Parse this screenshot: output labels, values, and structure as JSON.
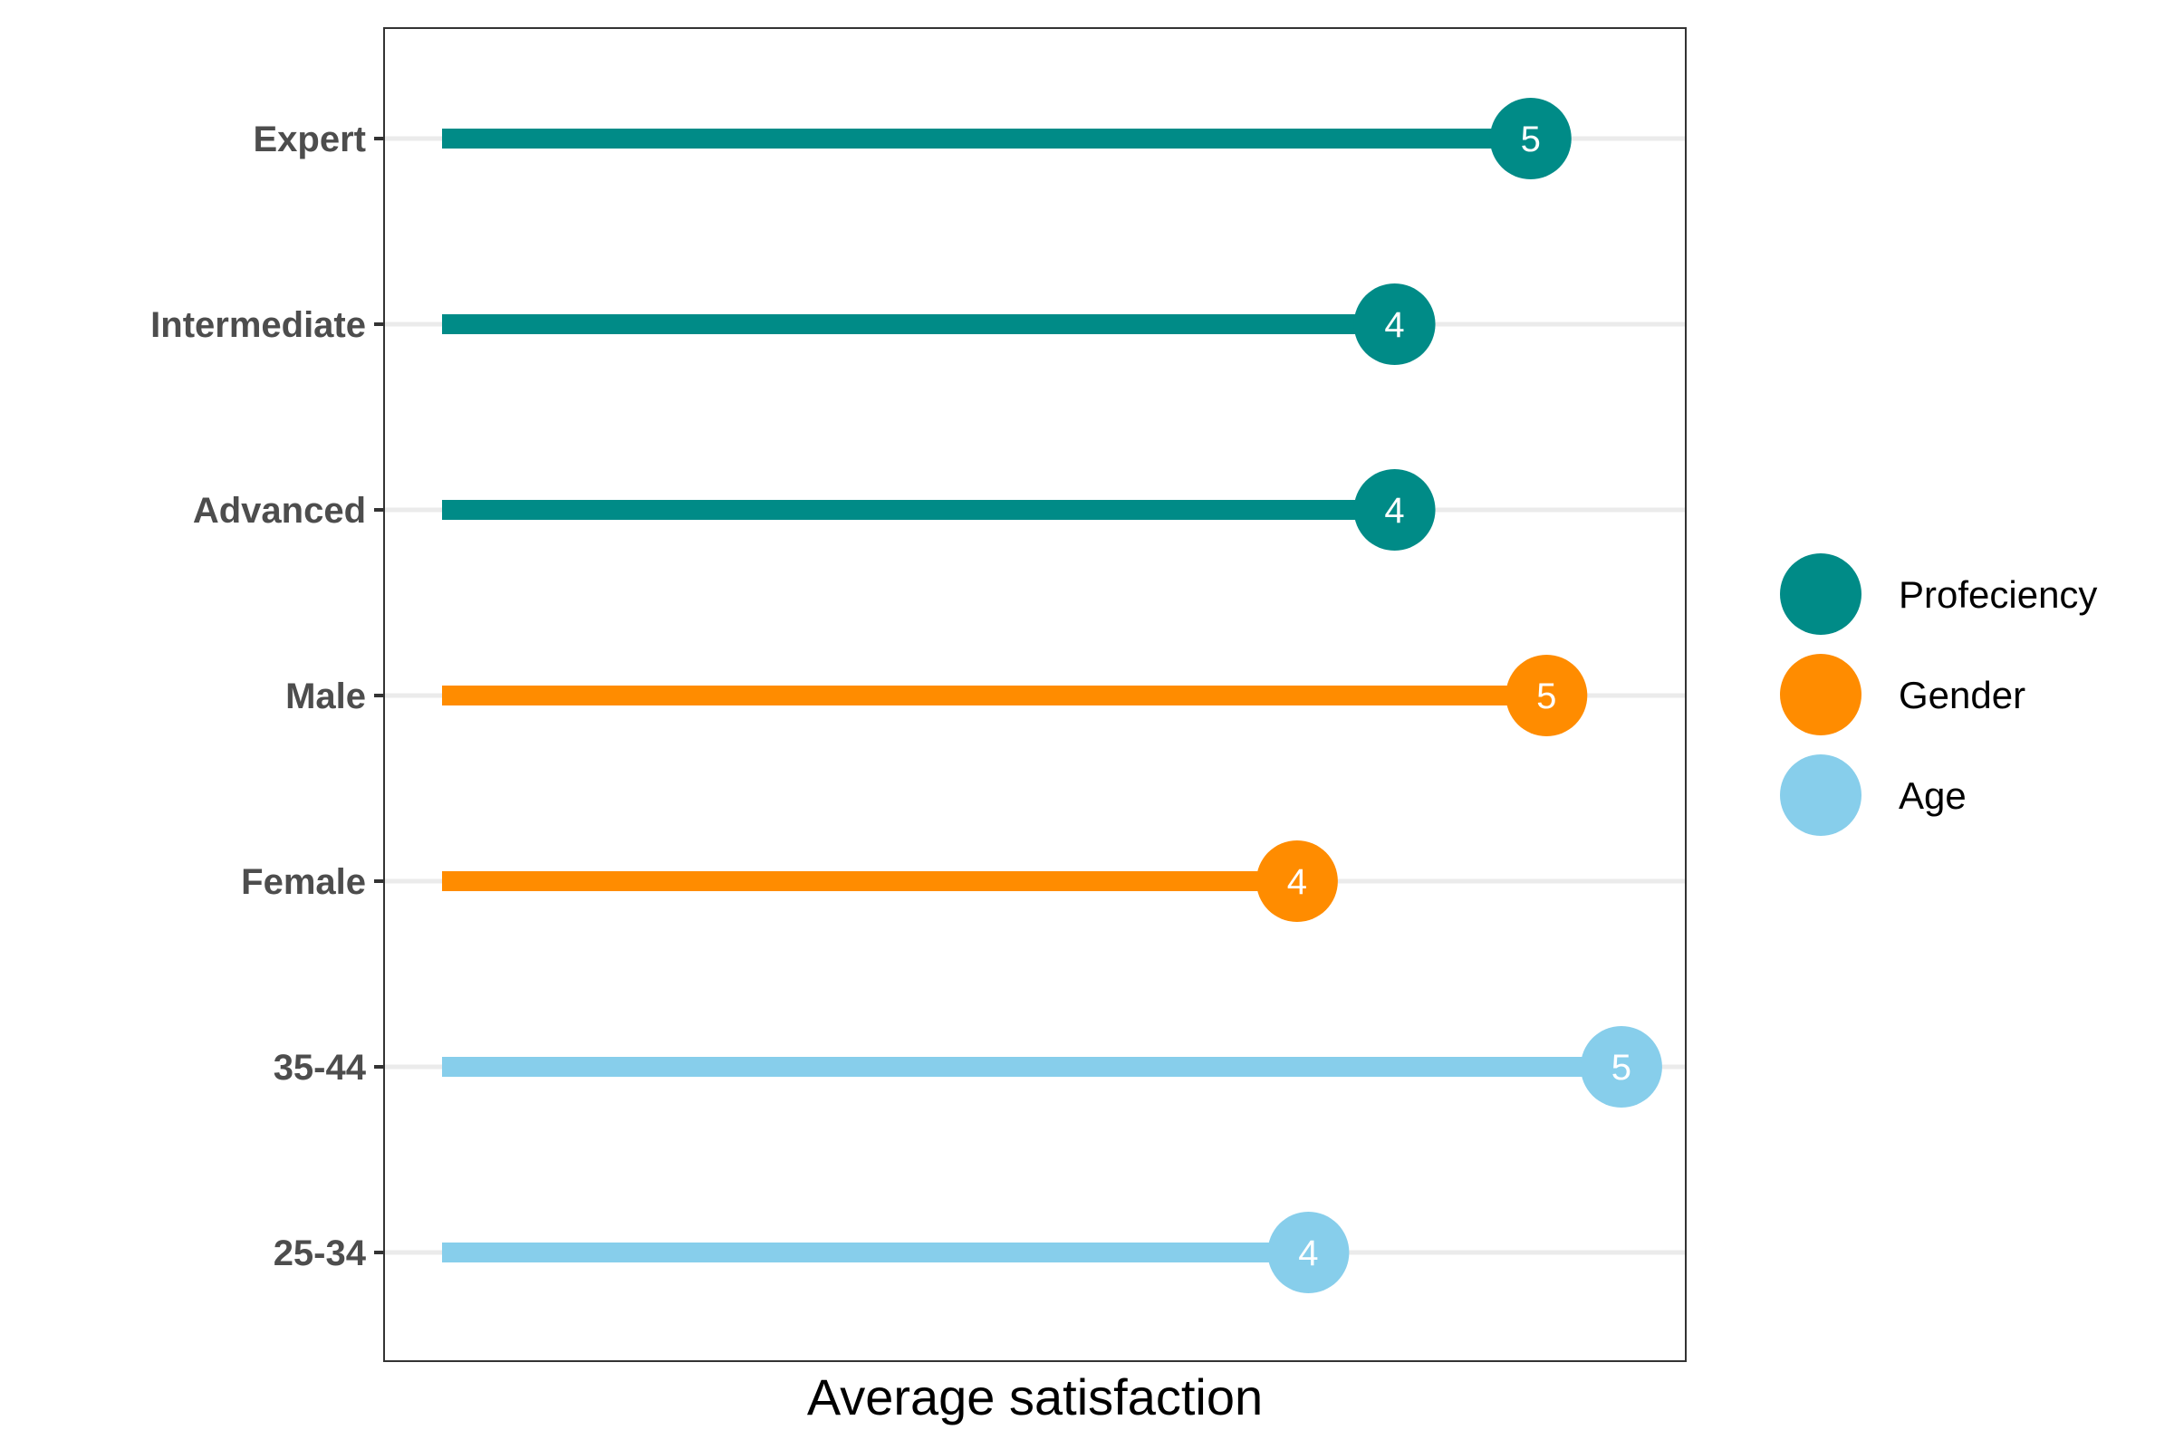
{
  "chart_data": {
    "type": "lollipop",
    "xlabel": "Average satisfaction",
    "ylabel": "",
    "xlim": [
      0,
      5.4
    ],
    "grid": "horizontal major",
    "legend_position": "right",
    "categories": [
      "Expert",
      "Intermediate",
      "Advanced",
      "Male",
      "Female",
      "35-44",
      "25-34"
    ],
    "points": [
      {
        "category": "Expert",
        "value": 4.8,
        "label": "5",
        "group": "Profeciency"
      },
      {
        "category": "Intermediate",
        "value": 4.2,
        "label": "4",
        "group": "Profeciency"
      },
      {
        "category": "Advanced",
        "value": 4.2,
        "label": "4",
        "group": "Profeciency"
      },
      {
        "category": "Male",
        "value": 4.87,
        "label": "5",
        "group": "Gender"
      },
      {
        "category": "Female",
        "value": 3.77,
        "label": "4",
        "group": "Gender"
      },
      {
        "category": "35-44",
        "value": 5.2,
        "label": "5",
        "group": "Age"
      },
      {
        "category": "25-34",
        "value": 3.82,
        "label": "4",
        "group": "Age"
      }
    ],
    "legend": [
      {
        "name": "Profeciency",
        "color": "#008b87"
      },
      {
        "name": "Gender",
        "color": "#ff8c00"
      },
      {
        "name": "Age",
        "color": "#87ceeb"
      }
    ]
  }
}
